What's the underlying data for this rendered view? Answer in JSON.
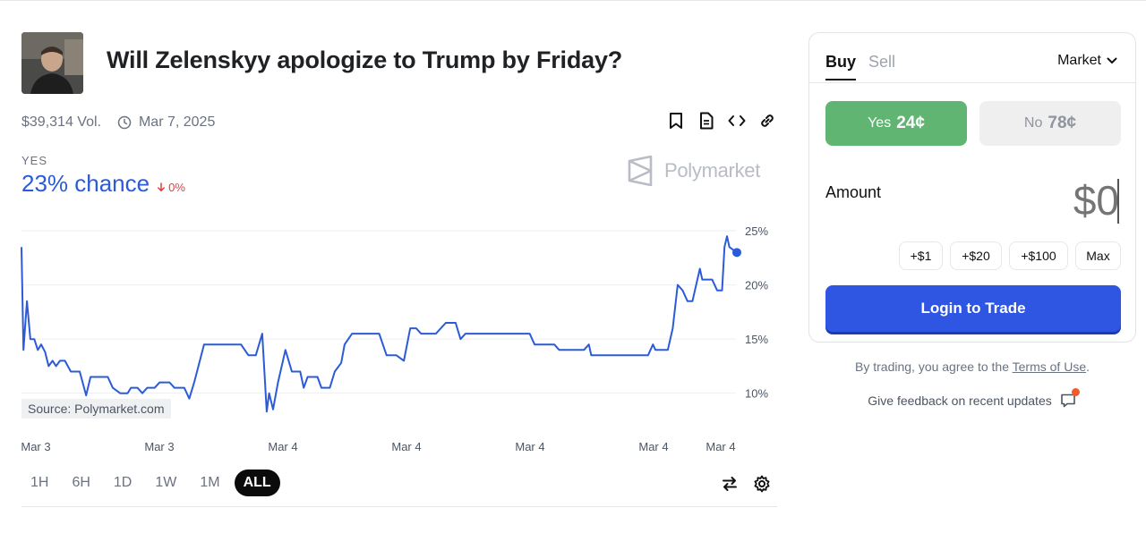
{
  "market": {
    "title": "Will Zelenskyy apologize to Trump by Friday?",
    "volume": "$39,314 Vol.",
    "end_date": "Mar 7, 2025",
    "outcome_label": "YES",
    "chance": "23% chance",
    "delta": "0%",
    "brand_name": "Polymarket",
    "source": "Source: Polymarket.com"
  },
  "icons": {
    "toolbar": [
      "bookmark-icon",
      "document-icon",
      "embed-code-icon",
      "link-icon"
    ],
    "chart": [
      "swap-arrows-icon",
      "gear-icon"
    ]
  },
  "ranges": [
    "1H",
    "6H",
    "1D",
    "1W",
    "1M",
    "ALL"
  ],
  "active_range": "ALL",
  "chart_data": {
    "type": "line",
    "x_tick_labels": [
      "Mar 3",
      "Mar 3",
      "Mar 4",
      "Mar 4",
      "Mar 4",
      "Mar 4",
      "Mar 4"
    ],
    "y_tick_labels": [
      "25%",
      "20%",
      "15%",
      "10%"
    ],
    "ylim": [
      7,
      26
    ],
    "grid": true,
    "series": [
      {
        "color": "#2c5bd8",
        "points": [
          [
            0,
            23.5
          ],
          [
            0.004,
            14
          ],
          [
            0.011,
            18.5
          ],
          [
            0.018,
            15
          ],
          [
            0.026,
            15
          ],
          [
            0.033,
            14
          ],
          [
            0.04,
            14.5
          ],
          [
            0.048,
            13.8
          ],
          [
            0.055,
            12.5
          ],
          [
            0.063,
            13
          ],
          [
            0.07,
            12.5
          ],
          [
            0.078,
            13
          ],
          [
            0.088,
            13
          ],
          [
            0.1,
            12
          ],
          [
            0.118,
            12
          ],
          [
            0.124,
            11
          ],
          [
            0.131,
            9.8
          ],
          [
            0.14,
            11.5
          ],
          [
            0.153,
            11.5
          ],
          [
            0.175,
            11.5
          ],
          [
            0.185,
            10.5
          ],
          [
            0.2,
            10
          ],
          [
            0.215,
            10
          ],
          [
            0.222,
            10.5
          ],
          [
            0.235,
            10.5
          ],
          [
            0.245,
            10
          ],
          [
            0.255,
            10.5
          ],
          [
            0.27,
            10.5
          ],
          [
            0.28,
            11
          ],
          [
            0.3,
            11
          ],
          [
            0.31,
            10.5
          ],
          [
            0.33,
            10.5
          ],
          [
            0.34,
            9.5
          ],
          [
            0.35,
            11
          ],
          [
            0.37,
            14.5
          ],
          [
            0.38,
            14.5
          ],
          [
            0.42,
            14.5
          ],
          [
            0.445,
            14.5
          ],
          [
            0.46,
            13.5
          ],
          [
            0.475,
            13.5
          ],
          [
            0.488,
            15.5
          ],
          [
            0.497,
            8.3
          ],
          [
            0.502,
            10
          ],
          [
            0.51,
            8.5
          ],
          [
            0.52,
            11
          ],
          [
            0.535,
            14
          ],
          [
            0.548,
            12
          ],
          [
            0.565,
            12
          ],
          [
            0.572,
            10.5
          ],
          [
            0.58,
            11.5
          ],
          [
            0.6,
            11.5
          ],
          [
            0.608,
            10.5
          ],
          [
            0.625,
            10.5
          ],
          [
            0.635,
            12
          ],
          [
            0.648,
            12.8
          ],
          [
            0.655,
            14.5
          ],
          [
            0.67,
            15.5
          ],
          [
            0.7,
            15.5
          ],
          [
            0.725,
            15.5
          ],
          [
            0.74,
            13.5
          ],
          [
            0.76,
            13.5
          ],
          [
            0.775,
            13
          ],
          [
            0.788,
            16
          ],
          [
            0.8,
            16
          ],
          [
            0.81,
            15.5
          ],
          [
            0.84,
            15.5
          ],
          [
            0.86,
            16.5
          ],
          [
            0.88,
            16.5
          ],
          [
            0.89,
            15
          ],
          [
            0.9,
            15.5
          ],
          [
            0.95,
            15.5
          ],
          [
            1,
            15.5
          ],
          [
            1.02,
            15.5
          ],
          [
            1.03,
            15.5
          ],
          [
            1.04,
            14.5
          ],
          [
            1.06,
            14.5
          ],
          [
            1.08,
            14.5
          ],
          [
            1.09,
            14
          ],
          [
            1.14,
            14
          ],
          [
            1.15,
            14.5
          ],
          [
            1.155,
            13.5
          ],
          [
            1.17,
            13.5
          ],
          [
            1.2,
            13.5
          ],
          [
            1.25,
            13.5
          ],
          [
            1.27,
            13.5
          ],
          [
            1.28,
            14.5
          ],
          [
            1.285,
            14
          ],
          [
            1.31,
            14
          ],
          [
            1.32,
            16
          ],
          [
            1.33,
            20
          ],
          [
            1.34,
            19.5
          ],
          [
            1.35,
            18.5
          ],
          [
            1.36,
            18.5
          ],
          [
            1.375,
            21.5
          ],
          [
            1.38,
            20.5
          ],
          [
            1.395,
            20.5
          ],
          [
            1.4,
            20.5
          ],
          [
            1.41,
            19.5
          ],
          [
            1.42,
            19.5
          ],
          [
            1.425,
            23.5
          ],
          [
            1.43,
            24.5
          ],
          [
            1.435,
            23.5
          ],
          [
            1.45,
            23
          ]
        ]
      }
    ]
  },
  "trade": {
    "buy_tab": "Buy",
    "sell_tab": "Sell",
    "order_type": "Market",
    "yes_label": "Yes",
    "yes_price": "24¢",
    "no_label": "No",
    "no_price": "78¢",
    "amount_label": "Amount",
    "amount_placeholder": "$0",
    "quick_amounts": [
      "+$1",
      "+$20",
      "+$100",
      "Max"
    ],
    "login_label": "Login to Trade",
    "terms_prefix": "By trading, you agree to the ",
    "terms_link": "Terms of Use",
    "terms_suffix": ".",
    "feedback": "Give feedback on recent updates"
  }
}
